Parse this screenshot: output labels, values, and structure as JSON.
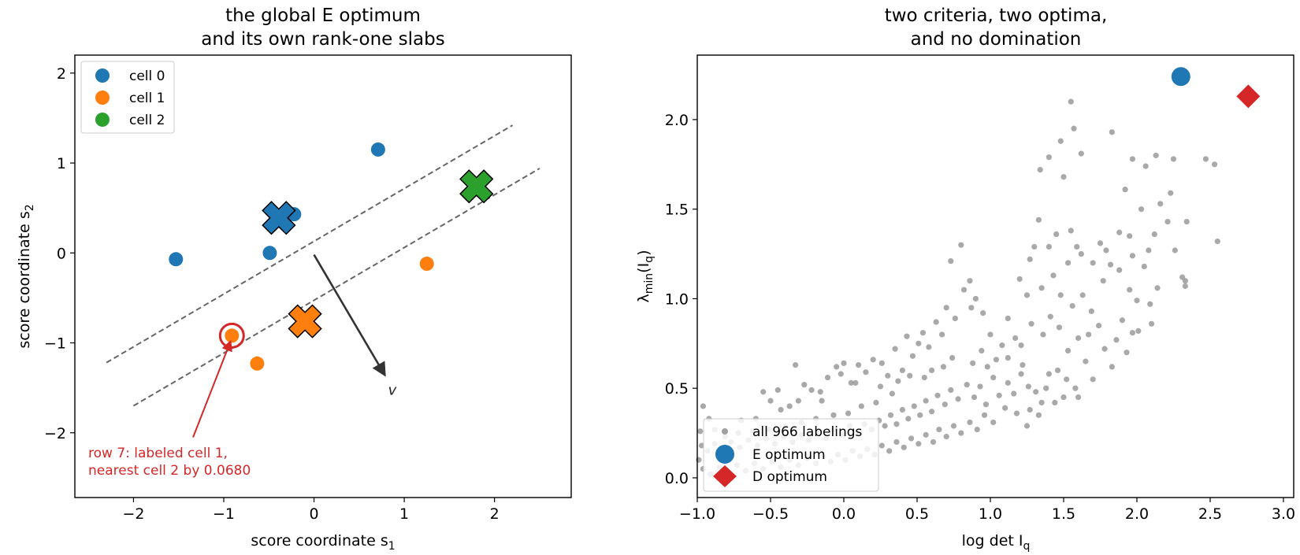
{
  "charts": [
    {
      "chart_data": {
        "type": "scatter",
        "title_line1": "the global E optimum",
        "title_line2": "and its own rank-one slabs",
        "xlabel": "score coordinate s",
        "xlabel_sub": "1",
        "ylabel": "score coordinate s",
        "ylabel_sub": "2",
        "xlim": [
          -2.65,
          2.85
        ],
        "ylim": [
          -2.72,
          2.2
        ],
        "xticks": [
          -2,
          -1,
          0,
          1,
          2
        ],
        "yticks": [
          -2,
          -1,
          0,
          1,
          2
        ],
        "xtick_labels": [
          "−2",
          "−1",
          "0",
          "1",
          "2"
        ],
        "ytick_labels": [
          "−2",
          "−1",
          "0",
          "1",
          "2"
        ],
        "grid": false,
        "legend_position": "top-left",
        "series": [
          {
            "name": "cell 0",
            "color": "#1f77b4",
            "points": [
              [
                -1.53,
                -0.07
              ],
              [
                -0.49,
                0.0
              ],
              [
                -0.22,
                0.43
              ],
              [
                0.71,
                1.15
              ]
            ],
            "centroid": [
              -0.39,
              0.39
            ]
          },
          {
            "name": "cell 1",
            "color": "#ff7f0e",
            "points": [
              [
                -0.91,
                -0.92
              ],
              [
                -0.63,
                -1.23
              ],
              [
                1.25,
                -0.12
              ]
            ],
            "centroid": [
              -0.1,
              -0.76
            ]
          },
          {
            "name": "cell 2",
            "color": "#2ca02c",
            "points": [],
            "centroid": [
              1.8,
              0.74
            ]
          }
        ],
        "slab_lines": [
          {
            "from": [
              -2.3,
              -1.22
            ],
            "to": [
              2.2,
              1.42
            ]
          },
          {
            "from": [
              -2.0,
              -1.7
            ],
            "to": [
              2.5,
              0.94
            ]
          }
        ],
        "direction_arrow": {
          "from": [
            0.0,
            -0.02
          ],
          "to": [
            0.78,
            -1.35
          ],
          "label": "v"
        },
        "highlight_point": [
          -0.91,
          -0.92
        ],
        "annotation": {
          "line1": "row 7: labeled cell 1,",
          "line2": "nearest cell 2 by 0.0680",
          "color": "#d62728",
          "anchor": [
            -1.34,
            -2.05
          ]
        }
      }
    },
    {
      "chart_data": {
        "type": "scatter",
        "title_line1": "two criteria, two optima,",
        "title_line2": "and no domination",
        "xlabel": "log det I",
        "xlabel_sub": "q",
        "ylabel": "λ",
        "ylabel_sub": "min",
        "ylabel_suffix": "(I",
        "ylabel_suffix_sub": "q",
        "ylabel_close": ")",
        "xlim": [
          -1.0,
          3.07
        ],
        "ylim": [
          -0.11,
          2.36
        ],
        "xticks": [
          -1.0,
          -0.5,
          0.0,
          0.5,
          1.0,
          1.5,
          2.0,
          2.5,
          3.0
        ],
        "yticks": [
          0.0,
          0.5,
          1.0,
          1.5,
          2.0
        ],
        "xtick_labels": [
          "−1.0",
          "−0.5",
          "0.0",
          "0.5",
          "1.0",
          "1.5",
          "2.0",
          "2.5",
          "3.0"
        ],
        "ytick_labels": [
          "0.0",
          "0.5",
          "1.0",
          "1.5",
          "2.0"
        ],
        "grid": false,
        "legend_position": "bottom-left",
        "series": [
          {
            "name": "all 966 labelings",
            "color": "#a0a0a0",
            "count": 966
          },
          {
            "name": "E optimum",
            "color": "#1f77b4",
            "points": [
              [
                2.3,
                2.24
              ]
            ]
          },
          {
            "name": "D optimum",
            "color": "#d62728",
            "points": [
              [
                2.76,
                2.13
              ]
            ]
          }
        ],
        "cloud_points": [
          [
            2.13,
            1.8
          ],
          [
            2.25,
            1.78
          ],
          [
            2.47,
            1.78
          ],
          [
            2.53,
            1.75
          ],
          [
            1.97,
            1.78
          ],
          [
            2.06,
            1.74
          ],
          [
            1.83,
            1.93
          ],
          [
            1.92,
            1.61
          ],
          [
            2.23,
            1.59
          ],
          [
            2.03,
            1.5
          ],
          [
            1.55,
            2.1
          ],
          [
            1.57,
            1.95
          ],
          [
            1.48,
            1.88
          ],
          [
            1.4,
            1.79
          ],
          [
            1.62,
            1.81
          ],
          [
            1.5,
            1.68
          ],
          [
            1.34,
            1.72
          ],
          [
            2.16,
            1.53
          ],
          [
            2.34,
            1.43
          ],
          [
            2.55,
            1.32
          ],
          [
            2.21,
            1.43
          ],
          [
            2.26,
            1.27
          ],
          [
            2.33,
            1.1
          ],
          [
            2.33,
            1.07
          ],
          [
            2.12,
            1.36
          ],
          [
            2.08,
            1.27
          ],
          [
            1.95,
            1.35
          ],
          [
            1.88,
            1.37
          ],
          [
            1.97,
            1.24
          ],
          [
            2.05,
            1.18
          ],
          [
            2.14,
            1.06
          ],
          [
            2.0,
            0.99
          ],
          [
            1.97,
            0.81
          ],
          [
            2.1,
            0.86
          ],
          [
            2.01,
            0.82
          ],
          [
            1.9,
            0.88
          ],
          [
            1.77,
            1.1
          ],
          [
            1.82,
            1.19
          ],
          [
            1.79,
            1.27
          ],
          [
            1.75,
            1.31
          ],
          [
            1.88,
            1.16
          ],
          [
            1.95,
            1.05
          ],
          [
            1.7,
            1.2
          ],
          [
            1.62,
            1.25
          ],
          [
            1.55,
            1.38
          ],
          [
            1.59,
            1.29
          ],
          [
            1.53,
            1.2
          ],
          [
            1.45,
            1.36
          ],
          [
            1.4,
            1.29
          ],
          [
            1.33,
            1.44
          ],
          [
            1.3,
            1.29
          ],
          [
            1.27,
            1.22
          ],
          [
            1.2,
            1.11
          ],
          [
            1.25,
            1.02
          ],
          [
            1.35,
            1.06
          ],
          [
            1.43,
            1.13
          ],
          [
            1.48,
            1.02
          ],
          [
            1.56,
            0.96
          ],
          [
            1.63,
            1.02
          ],
          [
            1.69,
            0.93
          ],
          [
            1.74,
            0.85
          ],
          [
            1.67,
            0.8
          ],
          [
            1.6,
            0.78
          ],
          [
            1.53,
            0.71
          ],
          [
            1.47,
            0.84
          ],
          [
            1.41,
            0.9
          ],
          [
            1.36,
            0.8
          ],
          [
            1.28,
            0.86
          ],
          [
            1.21,
            0.74
          ],
          [
            1.17,
            0.78
          ],
          [
            1.12,
            0.89
          ],
          [
            1.08,
            0.74
          ],
          [
            1.04,
            0.66
          ],
          [
            1.0,
            0.8
          ],
          [
            0.95,
            0.92
          ],
          [
            0.9,
            1.0
          ],
          [
            0.86,
            1.1
          ],
          [
            0.8,
            1.3
          ],
          [
            0.73,
            1.21
          ],
          [
            0.82,
            1.05
          ],
          [
            0.87,
            0.95
          ],
          [
            0.94,
            0.71
          ],
          [
            0.76,
            0.89
          ],
          [
            0.7,
            0.95
          ],
          [
            0.67,
            0.8
          ],
          [
            0.63,
            0.87
          ],
          [
            0.58,
            0.73
          ],
          [
            0.54,
            0.81
          ],
          [
            0.51,
            0.75
          ],
          [
            0.47,
            0.68
          ],
          [
            0.43,
            0.79
          ],
          [
            0.4,
            0.6
          ],
          [
            0.35,
            0.72
          ],
          [
            0.3,
            0.57
          ],
          [
            0.26,
            0.64
          ],
          [
            0.2,
            0.66
          ],
          [
            0.15,
            0.59
          ],
          [
            0.1,
            0.63
          ],
          [
            0.05,
            0.53
          ],
          [
            0.0,
            0.64
          ],
          [
            -0.05,
            0.62
          ],
          [
            -0.11,
            0.56
          ],
          [
            -0.16,
            0.48
          ],
          [
            -0.22,
            0.49
          ],
          [
            -0.27,
            0.52
          ],
          [
            -0.31,
            0.43
          ],
          [
            -0.37,
            0.4
          ],
          [
            -0.43,
            0.38
          ],
          [
            -0.5,
            0.43
          ],
          [
            -0.55,
            0.48
          ],
          [
            -0.45,
            0.49
          ],
          [
            -0.33,
            0.63
          ],
          [
            -0.02,
            0.58
          ],
          [
            0.08,
            0.53
          ],
          [
            1.7,
            0.55
          ],
          [
            1.65,
            0.65
          ],
          [
            1.58,
            0.5
          ],
          [
            1.52,
            0.55
          ],
          [
            1.46,
            0.6
          ],
          [
            1.4,
            0.58
          ],
          [
            1.35,
            0.42
          ],
          [
            1.31,
            0.48
          ],
          [
            1.26,
            0.51
          ],
          [
            1.21,
            0.58
          ],
          [
            1.16,
            0.47
          ],
          [
            1.12,
            0.53
          ],
          [
            1.06,
            0.46
          ],
          [
            1.02,
            0.56
          ],
          [
            0.97,
            0.41
          ],
          [
            0.93,
            0.51
          ],
          [
            0.89,
            0.45
          ],
          [
            0.84,
            0.52
          ],
          [
            0.78,
            0.44
          ],
          [
            0.73,
            0.49
          ],
          [
            0.69,
            0.41
          ],
          [
            0.64,
            0.46
          ],
          [
            0.6,
            0.37
          ],
          [
            0.56,
            0.43
          ],
          [
            0.52,
            0.35
          ],
          [
            0.48,
            0.4
          ],
          [
            0.44,
            0.33
          ],
          [
            0.4,
            0.38
          ],
          [
            0.36,
            0.3
          ],
          [
            0.32,
            0.35
          ],
          [
            0.28,
            0.29
          ],
          [
            0.24,
            0.32
          ],
          [
            0.19,
            0.27
          ],
          [
            0.14,
            0.3
          ],
          [
            0.09,
            0.25
          ],
          [
            0.04,
            0.29
          ],
          [
            -0.01,
            0.24
          ],
          [
            -0.07,
            0.27
          ],
          [
            -0.12,
            0.22
          ],
          [
            -0.18,
            0.26
          ],
          [
            -0.24,
            0.21
          ],
          [
            -0.29,
            0.24
          ],
          [
            -0.35,
            0.2
          ],
          [
            -0.41,
            0.23
          ],
          [
            -0.47,
            0.19
          ],
          [
            -0.53,
            0.22
          ],
          [
            -0.59,
            0.18
          ],
          [
            -0.65,
            0.21
          ],
          [
            -0.71,
            0.17
          ],
          [
            -0.77,
            0.2
          ],
          [
            -0.83,
            0.16
          ],
          [
            -0.88,
            0.19
          ],
          [
            -0.93,
            0.15
          ],
          [
            -0.97,
            0.18
          ],
          [
            1.02,
            0.31
          ],
          [
            0.96,
            0.35
          ],
          [
            0.91,
            0.27
          ],
          [
            0.86,
            0.31
          ],
          [
            0.8,
            0.25
          ],
          [
            0.75,
            0.29
          ],
          [
            0.7,
            0.23
          ],
          [
            0.65,
            0.27
          ],
          [
            0.61,
            0.2
          ],
          [
            0.56,
            0.24
          ],
          [
            0.51,
            0.19
          ],
          [
            0.46,
            0.22
          ],
          [
            0.41,
            0.17
          ],
          [
            0.36,
            0.2
          ],
          [
            0.31,
            0.15
          ],
          [
            0.26,
            0.18
          ],
          [
            0.21,
            0.13
          ],
          [
            0.16,
            0.16
          ],
          [
            0.11,
            0.12
          ],
          [
            0.06,
            0.15
          ],
          [
            0.01,
            0.1
          ],
          [
            -0.04,
            0.13
          ],
          [
            -0.09,
            0.09
          ],
          [
            -0.14,
            0.12
          ],
          [
            -0.19,
            0.08
          ],
          [
            -0.25,
            0.11
          ],
          [
            -0.31,
            0.07
          ],
          [
            -0.37,
            0.1
          ],
          [
            -0.43,
            0.06
          ],
          [
            -0.49,
            0.09
          ],
          [
            -0.55,
            0.05
          ],
          [
            -0.61,
            0.08
          ],
          [
            -0.67,
            0.04
          ],
          [
            -0.73,
            0.07
          ],
          [
            -0.79,
            0.03
          ],
          [
            -0.85,
            0.06
          ],
          [
            -0.91,
            0.02
          ],
          [
            -0.96,
            0.05
          ],
          [
            -0.99,
            0.1
          ],
          [
            -0.98,
            0.26
          ],
          [
            -0.96,
            0.4
          ],
          [
            -0.92,
            0.33
          ],
          [
            1.1,
            0.39
          ],
          [
            1.18,
            0.36
          ],
          [
            1.25,
            0.29
          ],
          [
            1.33,
            0.35
          ],
          [
            1.44,
            0.42
          ],
          [
            1.22,
            0.63
          ],
          [
            1.12,
            0.67
          ],
          [
            1.5,
            0.45
          ],
          [
            1.83,
            0.62
          ],
          [
            1.78,
            0.72
          ],
          [
            1.86,
            0.77
          ],
          [
            1.93,
            0.7
          ],
          [
            2.31,
            1.12
          ],
          [
            2.09,
            0.97
          ],
          [
            0.6,
            0.6
          ],
          [
            0.55,
            0.56
          ],
          [
            0.68,
            0.62
          ],
          [
            0.74,
            0.67
          ],
          [
            0.45,
            0.57
          ],
          [
            0.33,
            0.47
          ],
          [
            0.22,
            0.42
          ],
          [
            0.12,
            0.4
          ],
          [
            0.03,
            0.36
          ],
          [
            -0.07,
            0.35
          ],
          [
            -0.19,
            0.33
          ],
          [
            -0.29,
            0.31
          ],
          [
            -0.4,
            0.29
          ],
          [
            -0.51,
            0.27
          ],
          [
            -0.62,
            0.26
          ],
          [
            -0.72,
            0.25
          ],
          [
            -0.81,
            0.23
          ],
          [
            -0.88,
            0.27
          ],
          [
            -0.7,
            0.32
          ],
          [
            -0.6,
            0.33
          ],
          [
            -0.15,
            0.43
          ],
          [
            0.25,
            0.51
          ],
          [
            0.37,
            0.54
          ],
          [
            0.98,
            0.62
          ],
          [
            1.6,
            0.45
          ],
          [
            1.27,
            0.38
          ],
          [
            1.38,
            0.5
          ],
          [
            0.88,
            0.64
          ]
        ]
      }
    }
  ]
}
